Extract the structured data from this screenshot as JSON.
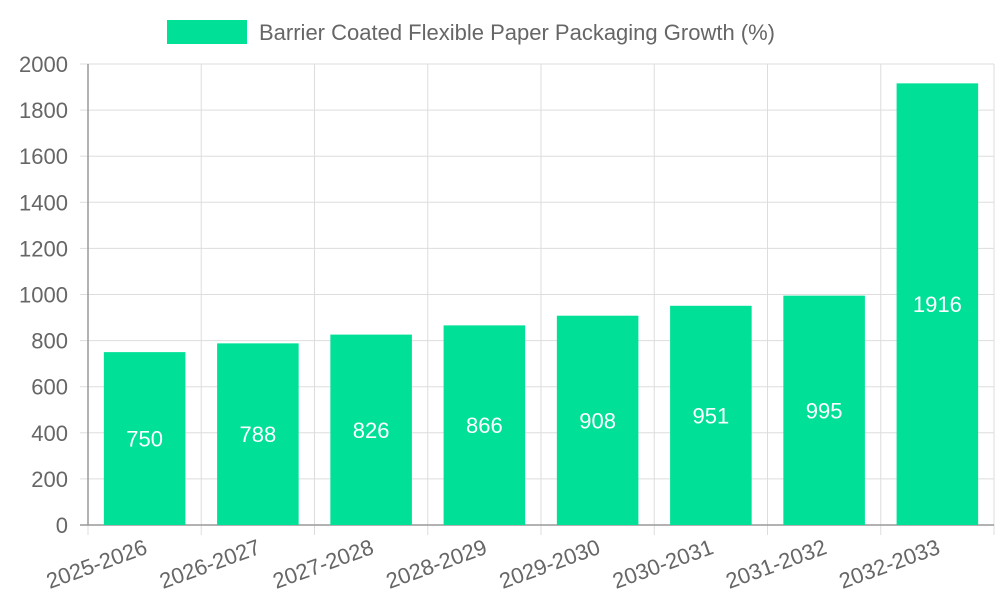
{
  "chart_data": {
    "type": "bar",
    "title": "",
    "xlabel": "",
    "ylabel": "",
    "legend": {
      "label": "Barrier Coated Flexible Paper Packaging Growth (%)",
      "position": "top-center"
    },
    "categories": [
      "2025-2026",
      "2026-2027",
      "2027-2028",
      "2028-2029",
      "2029-2030",
      "2030-2031",
      "2031-2032",
      "2032-2033"
    ],
    "series": [
      {
        "name": "Barrier Coated Flexible Paper Packaging Growth (%)",
        "values": [
          750,
          788,
          826,
          866,
          908,
          951,
          995,
          1916
        ]
      }
    ],
    "ylim": [
      0,
      2000
    ],
    "yticks": [
      0,
      200,
      400,
      600,
      800,
      1000,
      1200,
      1400,
      1600,
      1800,
      2000
    ],
    "grid": true,
    "colors": {
      "bar": "#00e096",
      "grid": "#dddddd",
      "axis": "#999999",
      "text": "#666666",
      "label": "#ffffff"
    }
  }
}
